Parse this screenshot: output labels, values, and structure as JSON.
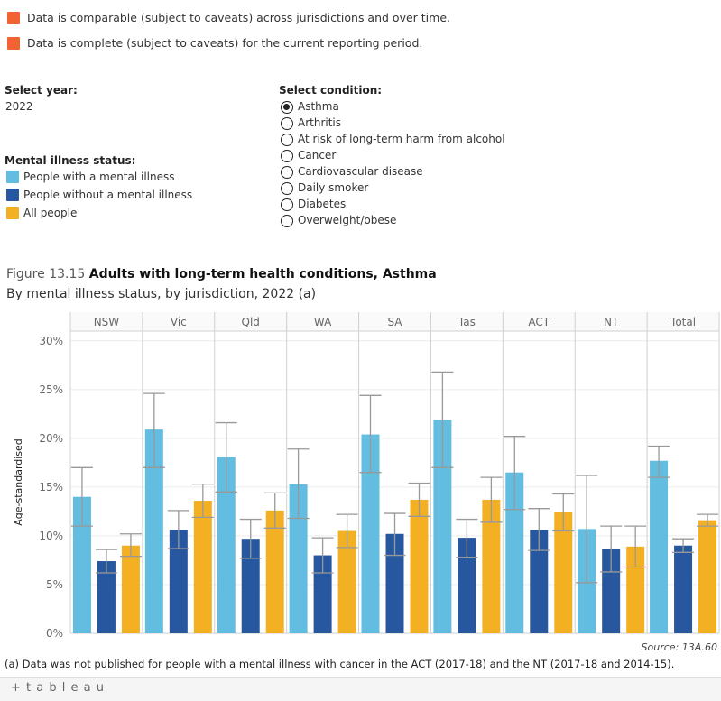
{
  "notes": {
    "comparable": "Data is comparable (subject to caveats) across jurisdictions and over time.",
    "complete": "Data is complete (subject to caveats) for the current reporting period.",
    "color": "#f26334"
  },
  "year_filter": {
    "label": "Select year:",
    "value": "2022"
  },
  "status_legend": {
    "title": "Mental illness status:",
    "items": [
      {
        "label": "People with a mental illness",
        "color": "#62bde0"
      },
      {
        "label": "People without a mental illness",
        "color": "#27579f"
      },
      {
        "label": "All people",
        "color": "#f4b023"
      }
    ]
  },
  "condition_filter": {
    "label": "Select condition:",
    "options": [
      "Asthma",
      "Arthritis",
      "At risk of long-term harm from alcohol",
      "Cancer",
      "Cardiovascular disease",
      "Daily smoker",
      "Diabetes",
      "Overweight/obese"
    ],
    "selected": "Asthma"
  },
  "figure": {
    "number": "Figure 13.15",
    "title": "Adults with long-term health conditions, Asthma",
    "subtitle": "By mental illness status, by jurisdiction, 2022 (a)",
    "source": "Source: 13A.60",
    "footnote": "(a) Data was not published for people with a mental illness with cancer in the ACT (2017-18) and the NT (2017-18 and 2014-15)."
  },
  "chart_data": {
    "type": "bar",
    "ylabel": "Age-standardised",
    "ylim": [
      0,
      31
    ],
    "yticks": [
      0,
      5,
      10,
      15,
      20,
      25,
      30
    ],
    "ytick_labels": [
      "0%",
      "5%",
      "10%",
      "15%",
      "20%",
      "25%",
      "30%"
    ],
    "categories": [
      "NSW",
      "Vic",
      "Qld",
      "WA",
      "SA",
      "Tas",
      "ACT",
      "NT",
      "Total"
    ],
    "series": [
      {
        "name": "People with a mental illness",
        "color": "#62bde0",
        "values": [
          14.0,
          20.9,
          18.1,
          15.3,
          20.4,
          21.9,
          16.5,
          10.7,
          17.7
        ],
        "ci_low": [
          11.0,
          17.0,
          14.5,
          11.8,
          16.5,
          17.0,
          12.7,
          5.2,
          16.0
        ],
        "ci_high": [
          17.0,
          24.6,
          21.6,
          18.9,
          24.4,
          26.8,
          20.2,
          16.2,
          19.2
        ]
      },
      {
        "name": "People without a mental illness",
        "color": "#27579f",
        "values": [
          7.4,
          10.6,
          9.7,
          8.0,
          10.2,
          9.8,
          10.6,
          8.7,
          9.0
        ],
        "ci_low": [
          6.2,
          8.7,
          7.7,
          6.2,
          8.0,
          7.8,
          8.5,
          6.3,
          8.3
        ],
        "ci_high": [
          8.6,
          12.6,
          11.7,
          9.8,
          12.3,
          11.7,
          12.8,
          11.0,
          9.7
        ]
      },
      {
        "name": "All people",
        "color": "#f4b023",
        "values": [
          9.0,
          13.6,
          12.6,
          10.5,
          13.7,
          13.7,
          12.4,
          8.9,
          11.6
        ],
        "ci_low": [
          7.9,
          11.9,
          10.8,
          8.8,
          12.0,
          11.4,
          10.5,
          6.8,
          11.0
        ],
        "ci_high": [
          10.2,
          15.3,
          14.4,
          12.2,
          15.4,
          16.0,
          14.3,
          11.0,
          12.2
        ]
      }
    ]
  },
  "footer": {
    "logo_text": "+ t a b l e a u"
  }
}
